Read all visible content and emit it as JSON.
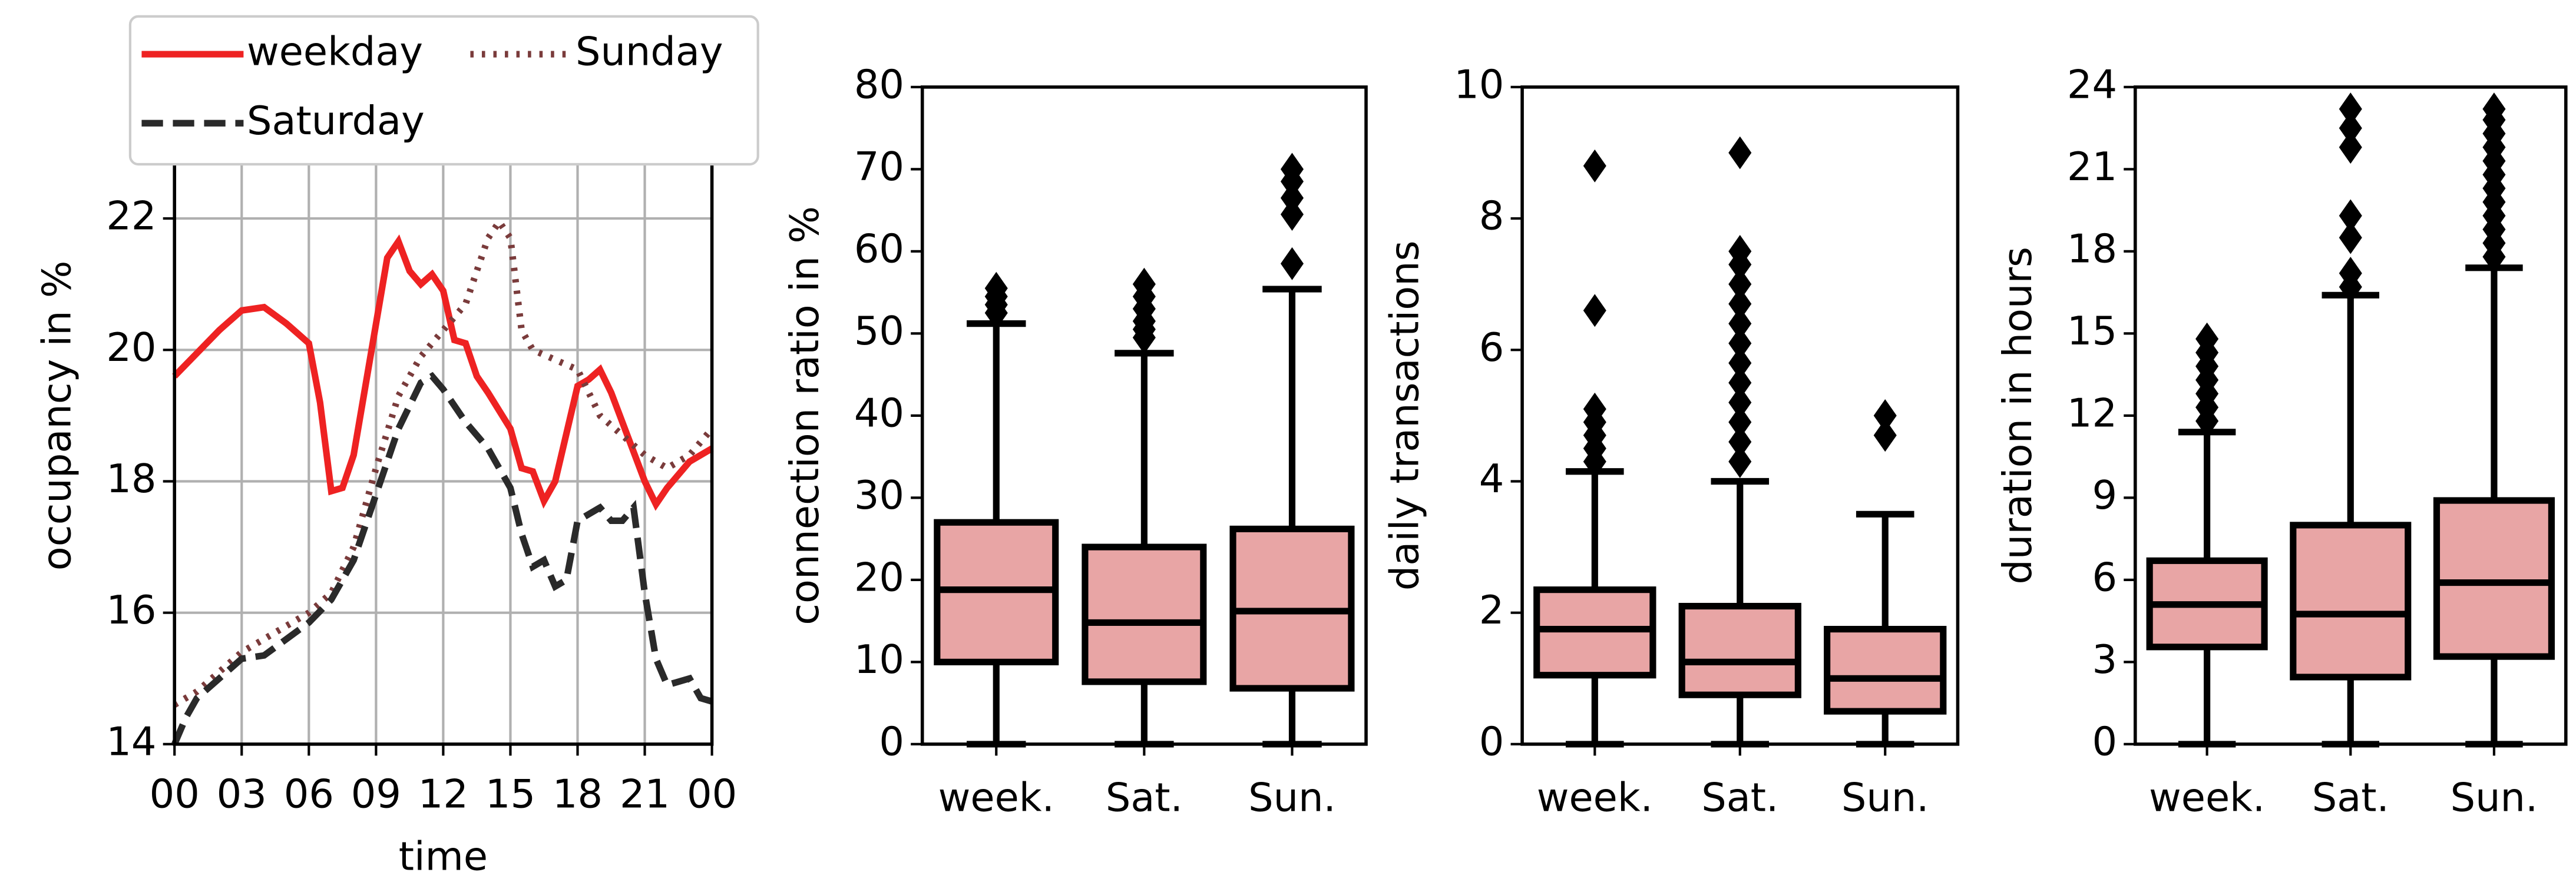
{
  "chart_data": [
    {
      "type": "line",
      "xlabel": "time",
      "ylabel": "occupancy in %",
      "grid": true,
      "legend": "upper left",
      "xlim": [
        0,
        24
      ],
      "xticks": [
        {
          "value": 0,
          "label": "00"
        },
        {
          "value": 3,
          "label": "03"
        },
        {
          "value": 6,
          "label": "06"
        },
        {
          "value": 9,
          "label": "09"
        },
        12,
        15,
        18,
        21,
        {
          "value": 24,
          "label": "00"
        }
      ],
      "ylim": [
        14,
        24
      ],
      "yticks": [
        14,
        16,
        18,
        20,
        22
      ],
      "series": [
        {
          "name": "weekday",
          "color": "#ee2222",
          "style": "solid",
          "x": [
            0,
            1,
            2,
            3,
            4,
            5,
            6,
            6.5,
            7,
            7.5,
            8,
            9,
            9.5,
            10,
            10.5,
            11,
            11.5,
            12,
            12.5,
            13,
            13.5,
            14,
            15,
            15.5,
            16,
            16.5,
            17,
            18,
            18.5,
            19,
            19.5,
            20,
            21,
            21.5,
            22,
            23,
            24
          ],
          "values": [
            19.6,
            19.95,
            20.3,
            20.6,
            20.65,
            20.4,
            20.1,
            19.2,
            17.85,
            17.9,
            18.4,
            20.4,
            21.4,
            21.65,
            21.2,
            21.0,
            21.15,
            20.9,
            20.15,
            20.1,
            19.6,
            19.35,
            18.8,
            18.2,
            18.15,
            17.7,
            18.0,
            19.45,
            19.55,
            19.7,
            19.35,
            18.9,
            18.0,
            17.65,
            17.9,
            18.3,
            18.5
          ]
        },
        {
          "name": "Sunday",
          "color": "#7a3b3b",
          "style": "dotted",
          "x": [
            0,
            1,
            2,
            3,
            4,
            5,
            6,
            7,
            8,
            9,
            10,
            11,
            12,
            13,
            13.5,
            14,
            14.5,
            15,
            15.5,
            16,
            17,
            18,
            19,
            20,
            21,
            22,
            23,
            24
          ],
          "values": [
            14.6,
            14.8,
            15.1,
            15.4,
            15.6,
            15.8,
            16.0,
            16.3,
            17.0,
            18.2,
            19.3,
            19.9,
            20.3,
            20.7,
            21.2,
            21.7,
            21.95,
            21.7,
            20.3,
            20.0,
            19.85,
            19.7,
            19.0,
            18.7,
            18.4,
            18.2,
            18.4,
            18.8
          ]
        },
        {
          "name": "Saturday",
          "color": "#2a2a2a",
          "style": "dashed",
          "x": [
            0,
            0.5,
            1,
            2,
            3,
            4,
            5,
            6,
            7,
            8,
            9,
            10,
            11,
            11.5,
            12,
            13,
            14,
            15,
            15.5,
            16,
            16.5,
            17,
            17.5,
            18,
            19,
            19.5,
            20,
            20.5,
            21,
            21.5,
            22,
            23,
            23.5,
            24
          ],
          "values": [
            14.0,
            14.4,
            14.7,
            15.0,
            15.3,
            15.35,
            15.6,
            15.85,
            16.2,
            16.8,
            17.8,
            18.8,
            19.5,
            19.6,
            19.4,
            18.9,
            18.5,
            17.9,
            17.2,
            16.7,
            16.8,
            16.4,
            16.5,
            17.4,
            17.6,
            17.4,
            17.4,
            17.6,
            16.3,
            15.3,
            14.9,
            15.0,
            14.7,
            14.65
          ]
        }
      ]
    },
    {
      "type": "box",
      "ylabel": "connection ratio in %",
      "color": "#e8a5a5",
      "categories": [
        "week.",
        "Sat.",
        "Sun."
      ],
      "ylim": [
        0,
        80
      ],
      "yticks": [
        0,
        10,
        20,
        30,
        40,
        50,
        60,
        70,
        80
      ],
      "boxes": [
        {
          "whislo": 0,
          "q1": 10,
          "med": 18.8,
          "q3": 27,
          "whishi": 51.2,
          "fliers": [
            52.5,
            53.5,
            54.5,
            55.5
          ]
        },
        {
          "whislo": 0,
          "q1": 7.6,
          "med": 14.8,
          "q3": 24,
          "whishi": 47.6,
          "fliers": [
            49.5,
            50.5,
            51.5,
            53,
            54.5,
            56
          ]
        },
        {
          "whislo": 0,
          "q1": 6.8,
          "med": 16.2,
          "q3": 26.2,
          "whishi": 55.4,
          "fliers": [
            58.5,
            64.5,
            66.5,
            68.5,
            70
          ]
        }
      ]
    },
    {
      "type": "box",
      "ylabel": "daily transactions",
      "color": "#e8a5a5",
      "categories": [
        "week.",
        "Sat.",
        "Sun."
      ],
      "ylim": [
        0,
        10
      ],
      "yticks": [
        0,
        2,
        4,
        6,
        8,
        10
      ],
      "boxes": [
        {
          "whislo": 0,
          "q1": 1.05,
          "med": 1.75,
          "q3": 2.35,
          "whishi": 4.15,
          "fliers": [
            4.3,
            4.5,
            4.7,
            4.9,
            5.1,
            6.6,
            8.8
          ]
        },
        {
          "whislo": 0,
          "q1": 0.75,
          "med": 1.25,
          "q3": 2.1,
          "whishi": 4.0,
          "fliers": [
            4.3,
            4.6,
            4.9,
            5.2,
            5.5,
            5.8,
            6.1,
            6.4,
            6.7,
            7.0,
            7.3,
            7.5,
            9.0
          ]
        },
        {
          "whislo": 0,
          "q1": 0.5,
          "med": 1.0,
          "q3": 1.75,
          "whishi": 3.5,
          "fliers": [
            4.7,
            5.0
          ]
        }
      ]
    },
    {
      "type": "box",
      "ylabel": "duration in hours",
      "color": "#e8a5a5",
      "categories": [
        "week.",
        "Sat.",
        "Sun."
      ],
      "ylim": [
        0,
        24
      ],
      "yticks": [
        0,
        3,
        6,
        9,
        12,
        15,
        18,
        21,
        24
      ],
      "boxes": [
        {
          "whislo": 0,
          "q1": 3.55,
          "med": 5.1,
          "q3": 6.7,
          "whishi": 11.4,
          "fliers": [
            11.8,
            12.3,
            12.8,
            13.3,
            13.8,
            14.3,
            14.8
          ]
        },
        {
          "whislo": 0,
          "q1": 2.45,
          "med": 4.75,
          "q3": 8.0,
          "whishi": 16.4,
          "fliers": [
            16.7,
            17.2,
            18.5,
            19.3,
            21.8,
            22.5,
            23.2
          ]
        },
        {
          "whislo": 0,
          "q1": 3.2,
          "med": 5.9,
          "q3": 8.9,
          "whishi": 17.4,
          "fliers": [
            17.8,
            18.3,
            18.8,
            19.3,
            19.8,
            20.3,
            20.8,
            21.3,
            21.8,
            22.3,
            22.8,
            23.2
          ]
        }
      ]
    }
  ]
}
